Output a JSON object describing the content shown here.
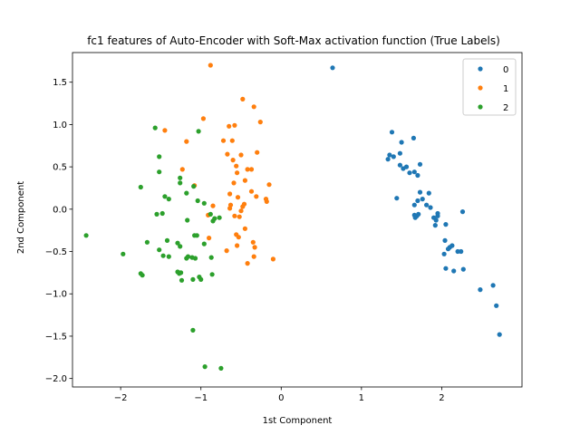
{
  "chart_data": {
    "type": "scatter",
    "title": "fc1 features of Auto-Encoder with Soft-Max activation function (True Labels)",
    "xlabel": "1st Component",
    "ylabel": "2nd Component",
    "xlim": [
      -2.6,
      3.0
    ],
    "ylim": [
      -2.1,
      1.85
    ],
    "xticks": [
      -2,
      -1,
      0,
      1,
      2
    ],
    "yticks": [
      -2.0,
      -1.5,
      -1.0,
      -0.5,
      0.0,
      0.5,
      1.0,
      1.5
    ],
    "grid": false,
    "legend": "top-right",
    "series": [
      {
        "name": "0",
        "color": "#1f77b4",
        "points": [
          [
            0.64,
            1.67
          ],
          [
            1.38,
            0.91
          ],
          [
            1.35,
            0.64
          ],
          [
            1.4,
            0.62
          ],
          [
            1.33,
            0.59
          ],
          [
            1.48,
            0.66
          ],
          [
            1.5,
            0.79
          ],
          [
            1.65,
            0.84
          ],
          [
            1.48,
            0.52
          ],
          [
            1.52,
            0.48
          ],
          [
            1.56,
            0.5
          ],
          [
            1.6,
            0.43
          ],
          [
            1.66,
            0.44
          ],
          [
            1.7,
            0.4
          ],
          [
            1.73,
            0.53
          ],
          [
            1.44,
            0.13
          ],
          [
            1.66,
            0.05
          ],
          [
            1.73,
            0.2
          ],
          [
            1.76,
            0.12
          ],
          [
            1.84,
            0.19
          ],
          [
            1.7,
            0.1
          ],
          [
            1.81,
            0.05
          ],
          [
            1.86,
            0.02
          ],
          [
            1.66,
            -0.07
          ],
          [
            1.69,
            -0.08
          ],
          [
            1.71,
            -0.06
          ],
          [
            1.67,
            -0.1
          ],
          [
            1.9,
            -0.1
          ],
          [
            1.93,
            -0.13
          ],
          [
            1.95,
            -0.08
          ],
          [
            1.92,
            -0.19
          ],
          [
            1.95,
            -0.05
          ],
          [
            2.05,
            -0.18
          ],
          [
            2.26,
            -0.03
          ],
          [
            2.04,
            -0.37
          ],
          [
            2.1,
            -0.45
          ],
          [
            2.13,
            -0.43
          ],
          [
            2.08,
            -0.47
          ],
          [
            2.2,
            -0.5
          ],
          [
            2.24,
            -0.5
          ],
          [
            2.03,
            -0.53
          ],
          [
            2.05,
            -0.7
          ],
          [
            2.15,
            -0.73
          ],
          [
            2.27,
            -0.71
          ],
          [
            2.48,
            -0.95
          ],
          [
            2.64,
            -0.9
          ],
          [
            2.68,
            -1.14
          ],
          [
            2.72,
            -1.48
          ]
        ]
      },
      {
        "name": "1",
        "color": "#ff7f0e",
        "points": [
          [
            -0.88,
            1.7
          ],
          [
            -0.48,
            1.3
          ],
          [
            -0.34,
            1.21
          ],
          [
            -0.26,
            1.03
          ],
          [
            -0.97,
            1.07
          ],
          [
            -1.45,
            0.93
          ],
          [
            -1.18,
            0.8
          ],
          [
            -0.65,
            0.98
          ],
          [
            -0.58,
            0.99
          ],
          [
            -0.72,
            0.81
          ],
          [
            -0.61,
            0.81
          ],
          [
            -0.3,
            0.67
          ],
          [
            -0.67,
            0.65
          ],
          [
            -0.6,
            0.58
          ],
          [
            -0.5,
            0.64
          ],
          [
            -0.42,
            0.47
          ],
          [
            -0.37,
            0.47
          ],
          [
            -0.56,
            0.51
          ],
          [
            -1.23,
            0.47
          ],
          [
            -0.55,
            0.43
          ],
          [
            -0.59,
            0.31
          ],
          [
            -0.45,
            0.34
          ],
          [
            -0.37,
            0.21
          ],
          [
            -0.31,
            0.15
          ],
          [
            -0.15,
            0.29
          ],
          [
            -0.19,
            0.12
          ],
          [
            -0.18,
            0.09
          ],
          [
            -1.08,
            0.28
          ],
          [
            -0.64,
            0.18
          ],
          [
            -0.54,
            0.14
          ],
          [
            -0.46,
            0.06
          ],
          [
            -0.48,
            0.03
          ],
          [
            -0.5,
            -0.02
          ],
          [
            -0.63,
            0.05
          ],
          [
            -0.64,
            0.01
          ],
          [
            -0.85,
            0.04
          ],
          [
            -0.91,
            -0.07
          ],
          [
            -0.58,
            -0.08
          ],
          [
            -0.52,
            -0.09
          ],
          [
            -0.45,
            -0.23
          ],
          [
            -0.56,
            -0.3
          ],
          [
            -0.53,
            -0.33
          ],
          [
            -0.35,
            -0.39
          ],
          [
            -0.55,
            -0.43
          ],
          [
            -0.33,
            -0.45
          ],
          [
            -0.68,
            -0.49
          ],
          [
            -0.34,
            -0.56
          ],
          [
            -0.1,
            -0.59
          ],
          [
            -0.42,
            -0.64
          ],
          [
            -0.9,
            -0.34
          ]
        ]
      },
      {
        "name": "2",
        "color": "#2ca02c",
        "points": [
          [
            -1.57,
            0.96
          ],
          [
            -1.52,
            0.62
          ],
          [
            -1.03,
            0.92
          ],
          [
            -1.52,
            0.44
          ],
          [
            -1.26,
            0.37
          ],
          [
            -1.26,
            0.31
          ],
          [
            -1.09,
            0.27
          ],
          [
            -1.75,
            0.26
          ],
          [
            -1.18,
            0.19
          ],
          [
            -1.45,
            0.15
          ],
          [
            -1.4,
            0.12
          ],
          [
            -1.04,
            0.1
          ],
          [
            -0.96,
            0.07
          ],
          [
            -1.55,
            -0.06
          ],
          [
            -1.48,
            -0.05
          ],
          [
            -0.88,
            -0.06
          ],
          [
            -0.83,
            -0.11
          ],
          [
            -0.77,
            -0.1
          ],
          [
            -1.17,
            -0.13
          ],
          [
            -0.85,
            -0.14
          ],
          [
            -2.43,
            -0.31
          ],
          [
            -1.08,
            -0.31
          ],
          [
            -1.05,
            -0.31
          ],
          [
            -1.42,
            -0.37
          ],
          [
            -1.67,
            -0.39
          ],
          [
            -1.29,
            -0.4
          ],
          [
            -0.96,
            -0.41
          ],
          [
            -1.26,
            -0.44
          ],
          [
            -1.52,
            -0.48
          ],
          [
            -1.97,
            -0.53
          ],
          [
            -1.47,
            -0.55
          ],
          [
            -1.4,
            -0.56
          ],
          [
            -1.16,
            -0.56
          ],
          [
            -1.18,
            -0.58
          ],
          [
            -1.11,
            -0.57
          ],
          [
            -1.07,
            -0.58
          ],
          [
            -0.87,
            -0.57
          ],
          [
            -1.29,
            -0.74
          ],
          [
            -1.25,
            -0.75
          ],
          [
            -1.27,
            -0.76
          ],
          [
            -1.75,
            -0.76
          ],
          [
            -1.73,
            -0.78
          ],
          [
            -0.86,
            -0.77
          ],
          [
            -1.02,
            -0.8
          ],
          [
            -1.0,
            -0.83
          ],
          [
            -1.24,
            -0.84
          ],
          [
            -1.1,
            -0.83
          ],
          [
            -1.1,
            -1.43
          ],
          [
            -0.95,
            -1.86
          ],
          [
            -0.75,
            -1.88
          ]
        ]
      }
    ]
  }
}
